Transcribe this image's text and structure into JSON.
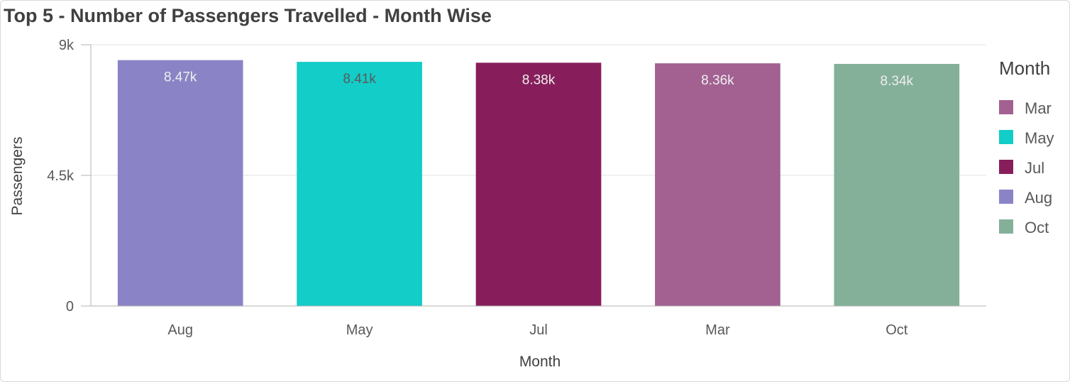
{
  "title": "Top 5 - Number of Passengers Travelled - Month Wise",
  "chart_data": {
    "type": "bar",
    "title": "Top 5 - Number of Passengers Travelled - Month Wise",
    "xlabel": "Month",
    "ylabel": "Passengers",
    "categories": [
      "Aug",
      "May",
      "Jul",
      "Mar",
      "Oct"
    ],
    "values": [
      8470,
      8410,
      8380,
      8360,
      8340
    ],
    "data_labels": [
      "8.47k",
      "8.41k",
      "8.38k",
      "8.36k",
      "8.34k"
    ],
    "ylim": [
      0,
      9000
    ],
    "yticks": [
      0,
      4500,
      9000
    ],
    "ytick_labels": [
      "0",
      "4.5k",
      "9k"
    ],
    "grid": true,
    "colors": {
      "Aug": "#8a84c6",
      "May": "#12cdc8",
      "Jul": "#871e5b",
      "Mar": "#a36192",
      "Oct": "#84b09a"
    },
    "label_colors": {
      "Aug": "#eeeeee",
      "May": "#5a5a5a",
      "Jul": "#eeeeee",
      "Mar": "#eeeeee",
      "Oct": "#eeeeee"
    },
    "legend": {
      "title": "Month",
      "placement": "right",
      "items": [
        "Mar",
        "May",
        "Jul",
        "Aug",
        "Oct"
      ]
    }
  }
}
